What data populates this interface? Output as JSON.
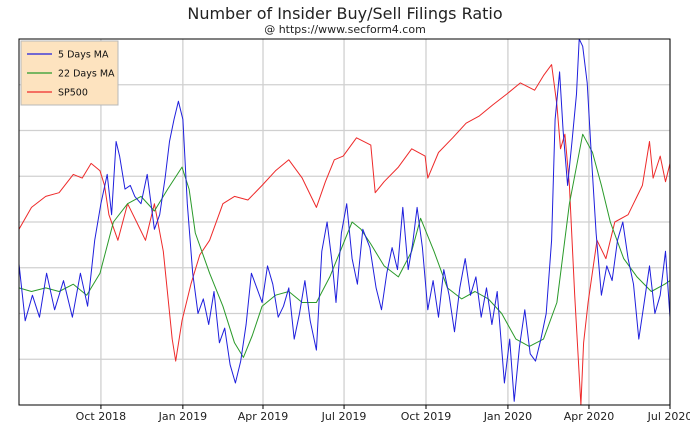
{
  "chart_data": {
    "type": "line",
    "title": "Number of Insider Buy/Sell Filings Ratio",
    "subtitle": "@ https://www.secform4.com",
    "xlabel": "",
    "ylabel": "",
    "x_ticks": [
      "Oct 2018",
      "Jan 2019",
      "Apr 2019",
      "Jul 2019",
      "Oct 2019",
      "Jan 2020",
      "Apr 2020",
      "Jul 2020"
    ],
    "x_range": [
      "2018-07-01",
      "2020-07-01"
    ],
    "y_range": [
      0,
      1
    ],
    "y_gridlines": 8,
    "grid": true,
    "legend_position": "top-left",
    "series": [
      {
        "name": "5 Days MA",
        "color": "#1f1fdd",
        "points": [
          [
            "2018-07-01",
            0.385
          ],
          [
            "2018-07-08",
            0.23
          ],
          [
            "2018-07-16",
            0.3
          ],
          [
            "2018-07-24",
            0.24
          ],
          [
            "2018-08-01",
            0.36
          ],
          [
            "2018-08-10",
            0.26
          ],
          [
            "2018-08-20",
            0.34
          ],
          [
            "2018-08-30",
            0.24
          ],
          [
            "2018-09-08",
            0.36
          ],
          [
            "2018-09-16",
            0.27
          ],
          [
            "2018-09-24",
            0.45
          ],
          [
            "2018-10-01",
            0.55
          ],
          [
            "2018-10-08",
            0.63
          ],
          [
            "2018-10-13",
            0.52
          ],
          [
            "2018-10-18",
            0.72
          ],
          [
            "2018-10-22",
            0.68
          ],
          [
            "2018-10-28",
            0.59
          ],
          [
            "2018-11-03",
            0.6
          ],
          [
            "2018-11-08",
            0.57
          ],
          [
            "2018-11-15",
            0.55
          ],
          [
            "2018-11-22",
            0.63
          ],
          [
            "2018-11-30",
            0.48
          ],
          [
            "2018-12-06",
            0.52
          ],
          [
            "2018-12-12",
            0.62
          ],
          [
            "2018-12-17",
            0.72
          ],
          [
            "2018-12-22",
            0.78
          ],
          [
            "2018-12-27",
            0.83
          ],
          [
            "2019-01-01",
            0.78
          ],
          [
            "2019-01-06",
            0.55
          ],
          [
            "2019-01-12",
            0.36
          ],
          [
            "2019-01-18",
            0.25
          ],
          [
            "2019-01-24",
            0.29
          ],
          [
            "2019-01-30",
            0.22
          ],
          [
            "2019-02-05",
            0.31
          ],
          [
            "2019-02-11",
            0.17
          ],
          [
            "2019-02-17",
            0.21
          ],
          [
            "2019-02-23",
            0.11
          ],
          [
            "2019-03-01",
            0.06
          ],
          [
            "2019-03-07",
            0.12
          ],
          [
            "2019-03-13",
            0.22
          ],
          [
            "2019-03-19",
            0.36
          ],
          [
            "2019-03-25",
            0.32
          ],
          [
            "2019-03-31",
            0.28
          ],
          [
            "2019-04-06",
            0.38
          ],
          [
            "2019-04-12",
            0.33
          ],
          [
            "2019-04-18",
            0.24
          ],
          [
            "2019-04-24",
            0.27
          ],
          [
            "2019-04-30",
            0.32
          ],
          [
            "2019-05-06",
            0.18
          ],
          [
            "2019-05-12",
            0.25
          ],
          [
            "2019-05-18",
            0.34
          ],
          [
            "2019-05-24",
            0.23
          ],
          [
            "2019-05-31",
            0.15
          ],
          [
            "2019-06-06",
            0.42
          ],
          [
            "2019-06-12",
            0.5
          ],
          [
            "2019-06-18",
            0.38
          ],
          [
            "2019-06-22",
            0.28
          ],
          [
            "2019-06-28",
            0.47
          ],
          [
            "2019-07-04",
            0.55
          ],
          [
            "2019-07-10",
            0.4
          ],
          [
            "2019-07-16",
            0.33
          ],
          [
            "2019-07-22",
            0.48
          ],
          [
            "2019-07-30",
            0.43
          ],
          [
            "2019-08-06",
            0.32
          ],
          [
            "2019-08-12",
            0.26
          ],
          [
            "2019-08-18",
            0.36
          ],
          [
            "2019-08-24",
            0.43
          ],
          [
            "2019-08-30",
            0.37
          ],
          [
            "2019-09-05",
            0.54
          ],
          [
            "2019-09-11",
            0.37
          ],
          [
            "2019-09-16",
            0.44
          ],
          [
            "2019-09-21",
            0.54
          ],
          [
            "2019-09-27",
            0.43
          ],
          [
            "2019-10-03",
            0.26
          ],
          [
            "2019-10-09",
            0.34
          ],
          [
            "2019-10-15",
            0.24
          ],
          [
            "2019-10-21",
            0.37
          ],
          [
            "2019-10-27",
            0.3
          ],
          [
            "2019-11-02",
            0.2
          ],
          [
            "2019-11-08",
            0.32
          ],
          [
            "2019-11-14",
            0.4
          ],
          [
            "2019-11-20",
            0.3
          ],
          [
            "2019-11-26",
            0.35
          ],
          [
            "2019-12-02",
            0.24
          ],
          [
            "2019-12-08",
            0.32
          ],
          [
            "2019-12-14",
            0.22
          ],
          [
            "2019-12-20",
            0.31
          ],
          [
            "2019-12-28",
            0.06
          ],
          [
            "2020-01-03",
            0.18
          ],
          [
            "2020-01-08",
            0.01
          ],
          [
            "2020-01-14",
            0.16
          ],
          [
            "2020-01-20",
            0.26
          ],
          [
            "2020-01-26",
            0.14
          ],
          [
            "2020-02-01",
            0.12
          ],
          [
            "2020-02-07",
            0.18
          ],
          [
            "2020-02-13",
            0.25
          ],
          [
            "2020-02-19",
            0.45
          ],
          [
            "2020-02-23",
            0.78
          ],
          [
            "2020-02-28",
            0.91
          ],
          [
            "2020-03-03",
            0.75
          ],
          [
            "2020-03-08",
            0.6
          ],
          [
            "2020-03-13",
            0.72
          ],
          [
            "2020-03-18",
            0.85
          ],
          [
            "2020-03-21",
            1.0
          ],
          [
            "2020-03-25",
            0.98
          ],
          [
            "2020-03-30",
            0.88
          ],
          [
            "2020-04-04",
            0.67
          ],
          [
            "2020-04-09",
            0.47
          ],
          [
            "2020-04-15",
            0.3
          ],
          [
            "2020-04-21",
            0.38
          ],
          [
            "2020-04-27",
            0.34
          ],
          [
            "2020-05-03",
            0.45
          ],
          [
            "2020-05-09",
            0.5
          ],
          [
            "2020-05-15",
            0.4
          ],
          [
            "2020-05-21",
            0.33
          ],
          [
            "2020-05-27",
            0.18
          ],
          [
            "2020-06-02",
            0.28
          ],
          [
            "2020-06-08",
            0.38
          ],
          [
            "2020-06-14",
            0.25
          ],
          [
            "2020-06-20",
            0.3
          ],
          [
            "2020-06-26",
            0.42
          ],
          [
            "2020-07-01",
            0.24
          ]
        ]
      },
      {
        "name": "22 Days MA",
        "color": "#2a9a2a",
        "points": [
          [
            "2018-07-01",
            0.32
          ],
          [
            "2018-07-15",
            0.31
          ],
          [
            "2018-07-31",
            0.32
          ],
          [
            "2018-08-15",
            0.31
          ],
          [
            "2018-08-31",
            0.33
          ],
          [
            "2018-09-15",
            0.3
          ],
          [
            "2018-09-30",
            0.36
          ],
          [
            "2018-10-15",
            0.5
          ],
          [
            "2018-10-31",
            0.55
          ],
          [
            "2018-11-15",
            0.57
          ],
          [
            "2018-11-30",
            0.53
          ],
          [
            "2018-12-15",
            0.59
          ],
          [
            "2018-12-31",
            0.65
          ],
          [
            "2019-01-08",
            0.59
          ],
          [
            "2019-01-15",
            0.47
          ],
          [
            "2019-01-31",
            0.36
          ],
          [
            "2019-02-15",
            0.27
          ],
          [
            "2019-02-28",
            0.17
          ],
          [
            "2019-03-10",
            0.13
          ],
          [
            "2019-03-20",
            0.19
          ],
          [
            "2019-03-31",
            0.27
          ],
          [
            "2019-04-15",
            0.3
          ],
          [
            "2019-04-30",
            0.31
          ],
          [
            "2019-05-15",
            0.28
          ],
          [
            "2019-05-31",
            0.28
          ],
          [
            "2019-06-15",
            0.35
          ],
          [
            "2019-06-30",
            0.44
          ],
          [
            "2019-07-10",
            0.5
          ],
          [
            "2019-07-20",
            0.48
          ],
          [
            "2019-07-31",
            0.44
          ],
          [
            "2019-08-15",
            0.38
          ],
          [
            "2019-08-31",
            0.35
          ],
          [
            "2019-09-15",
            0.42
          ],
          [
            "2019-09-25",
            0.51
          ],
          [
            "2019-10-10",
            0.42
          ],
          [
            "2019-10-25",
            0.32
          ],
          [
            "2019-11-10",
            0.29
          ],
          [
            "2019-11-25",
            0.31
          ],
          [
            "2019-12-10",
            0.29
          ],
          [
            "2019-12-25",
            0.25
          ],
          [
            "2020-01-10",
            0.18
          ],
          [
            "2020-01-25",
            0.16
          ],
          [
            "2020-02-10",
            0.18
          ],
          [
            "2020-02-25",
            0.28
          ],
          [
            "2020-03-10",
            0.55
          ],
          [
            "2020-03-25",
            0.74
          ],
          [
            "2020-04-05",
            0.69
          ],
          [
            "2020-04-15",
            0.6
          ],
          [
            "2020-04-25",
            0.5
          ],
          [
            "2020-05-10",
            0.4
          ],
          [
            "2020-05-25",
            0.35
          ],
          [
            "2020-06-10",
            0.31
          ],
          [
            "2020-06-25",
            0.33
          ],
          [
            "2020-07-01",
            0.34
          ]
        ]
      },
      {
        "name": "SP500",
        "color": "#ee2a2a",
        "points": [
          [
            "2018-07-01",
            0.48
          ],
          [
            "2018-07-15",
            0.54
          ],
          [
            "2018-07-31",
            0.57
          ],
          [
            "2018-08-15",
            0.58
          ],
          [
            "2018-08-31",
            0.63
          ],
          [
            "2018-09-10",
            0.62
          ],
          [
            "2018-09-20",
            0.66
          ],
          [
            "2018-09-30",
            0.64
          ],
          [
            "2018-10-05",
            0.6
          ],
          [
            "2018-10-10",
            0.52
          ],
          [
            "2018-10-20",
            0.45
          ],
          [
            "2018-10-31",
            0.55
          ],
          [
            "2018-11-10",
            0.5
          ],
          [
            "2018-11-20",
            0.45
          ],
          [
            "2018-11-30",
            0.55
          ],
          [
            "2018-12-10",
            0.42
          ],
          [
            "2018-12-20",
            0.18
          ],
          [
            "2018-12-24",
            0.12
          ],
          [
            "2018-12-31",
            0.23
          ],
          [
            "2019-01-10",
            0.33
          ],
          [
            "2019-01-20",
            0.41
          ],
          [
            "2019-01-31",
            0.45
          ],
          [
            "2019-02-15",
            0.55
          ],
          [
            "2019-02-28",
            0.57
          ],
          [
            "2019-03-15",
            0.56
          ],
          [
            "2019-03-31",
            0.6
          ],
          [
            "2019-04-15",
            0.64
          ],
          [
            "2019-04-30",
            0.67
          ],
          [
            "2019-05-15",
            0.62
          ],
          [
            "2019-05-31",
            0.54
          ],
          [
            "2019-06-10",
            0.61
          ],
          [
            "2019-06-20",
            0.67
          ],
          [
            "2019-06-30",
            0.68
          ],
          [
            "2019-07-15",
            0.73
          ],
          [
            "2019-07-31",
            0.71
          ],
          [
            "2019-08-05",
            0.58
          ],
          [
            "2019-08-15",
            0.61
          ],
          [
            "2019-08-31",
            0.65
          ],
          [
            "2019-09-15",
            0.7
          ],
          [
            "2019-09-30",
            0.68
          ],
          [
            "2019-10-03",
            0.62
          ],
          [
            "2019-10-15",
            0.69
          ],
          [
            "2019-10-31",
            0.73
          ],
          [
            "2019-11-15",
            0.77
          ],
          [
            "2019-11-30",
            0.79
          ],
          [
            "2019-12-15",
            0.82
          ],
          [
            "2019-12-31",
            0.85
          ],
          [
            "2020-01-15",
            0.88
          ],
          [
            "2020-01-31",
            0.86
          ],
          [
            "2020-02-10",
            0.9
          ],
          [
            "2020-02-19",
            0.93
          ],
          [
            "2020-02-25",
            0.82
          ],
          [
            "2020-02-29",
            0.7
          ],
          [
            "2020-03-05",
            0.74
          ],
          [
            "2020-03-10",
            0.6
          ],
          [
            "2020-03-16",
            0.3
          ],
          [
            "2020-03-23",
            0.0
          ],
          [
            "2020-03-26",
            0.17
          ],
          [
            "2020-03-31",
            0.28
          ],
          [
            "2020-04-10",
            0.45
          ],
          [
            "2020-04-20",
            0.4
          ],
          [
            "2020-04-30",
            0.5
          ],
          [
            "2020-05-15",
            0.52
          ],
          [
            "2020-05-31",
            0.6
          ],
          [
            "2020-06-08",
            0.72
          ],
          [
            "2020-06-12",
            0.62
          ],
          [
            "2020-06-20",
            0.68
          ],
          [
            "2020-06-26",
            0.61
          ],
          [
            "2020-07-01",
            0.66
          ]
        ]
      }
    ]
  }
}
